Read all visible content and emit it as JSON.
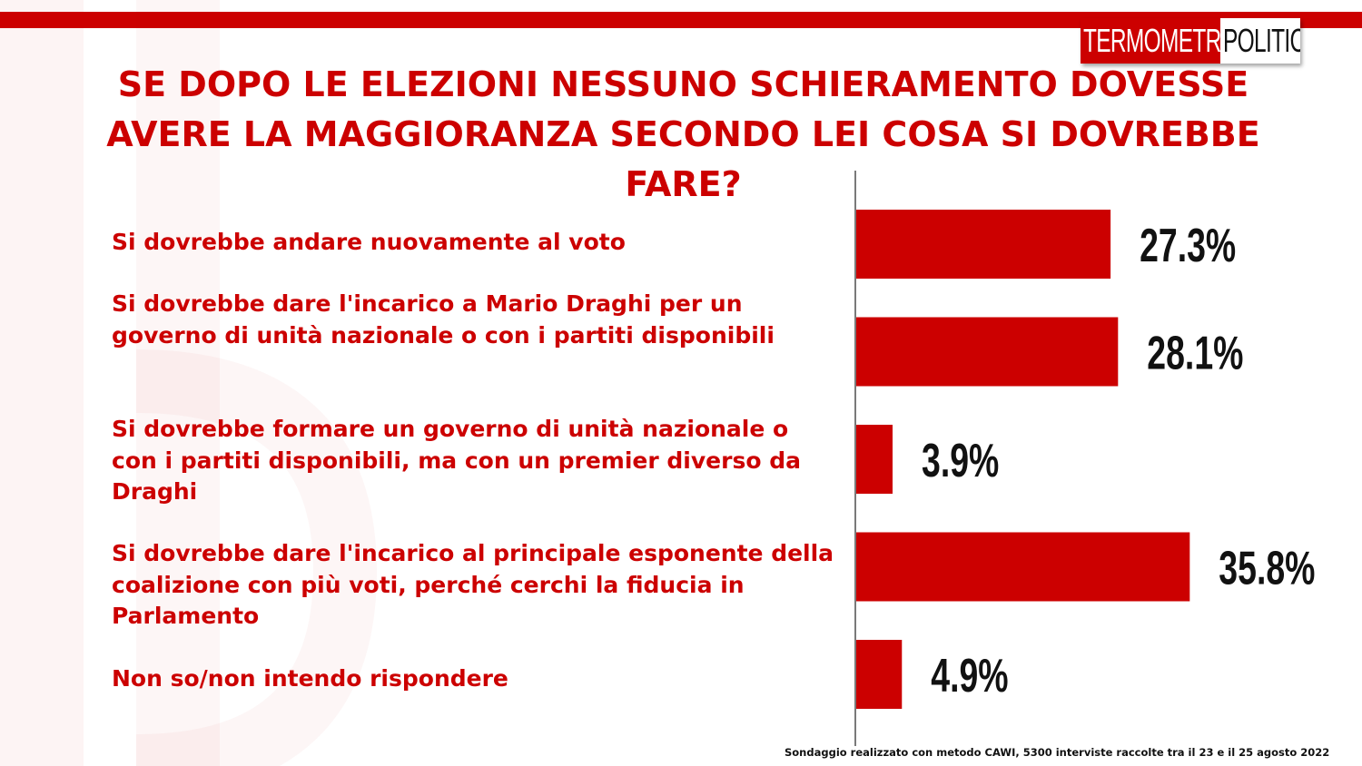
{
  "brand": {
    "logo_part1": "TERMOMETRO",
    "logo_part2": "POLITICO",
    "accent": "#cc0000"
  },
  "title": "SE DOPO LE ELEZIONI NESSUNO SCHIERAMENTO DOVESSE AVERE LA MAGGIORANZA SECONDO LEI COSA SI DOVREBBE FARE?",
  "footer": "Sondaggio realizzato con metodo CAWI, 5300 interviste raccolte tra il 23 e il 25 agosto 2022",
  "chart_data": {
    "type": "bar",
    "orientation": "horizontal",
    "title": "SE DOPO LE ELEZIONI NESSUNO SCHIERAMENTO DOVESSE AVERE LA MAGGIORANZA SECONDO LEI COSA SI DOVREBBE FARE?",
    "categories": [
      "Si dovrebbe andare nuovamente al voto",
      "Si dovrebbe dare l'incarico a Mario Draghi per un governo di unità  nazionale o con i partiti disponibili",
      "Si dovrebbe formare un governo di unità  nazionale o con i partiti disponibili, ma con un premier diverso da Draghi",
      "Si dovrebbe dare l'incarico al principale esponente della coalizione con più voti, perché cerchi la fiducia in Parlamento",
      "Non so/non intendo rispondere"
    ],
    "values": [
      27.3,
      28.1,
      3.9,
      35.8,
      4.9
    ],
    "value_labels": [
      "27.3%",
      "28.1%",
      "3.9%",
      "35.8%",
      "4.9%"
    ],
    "xlim": [
      0,
      100
    ],
    "bar_color": "#cc0000",
    "grid": false,
    "legend": "none"
  }
}
